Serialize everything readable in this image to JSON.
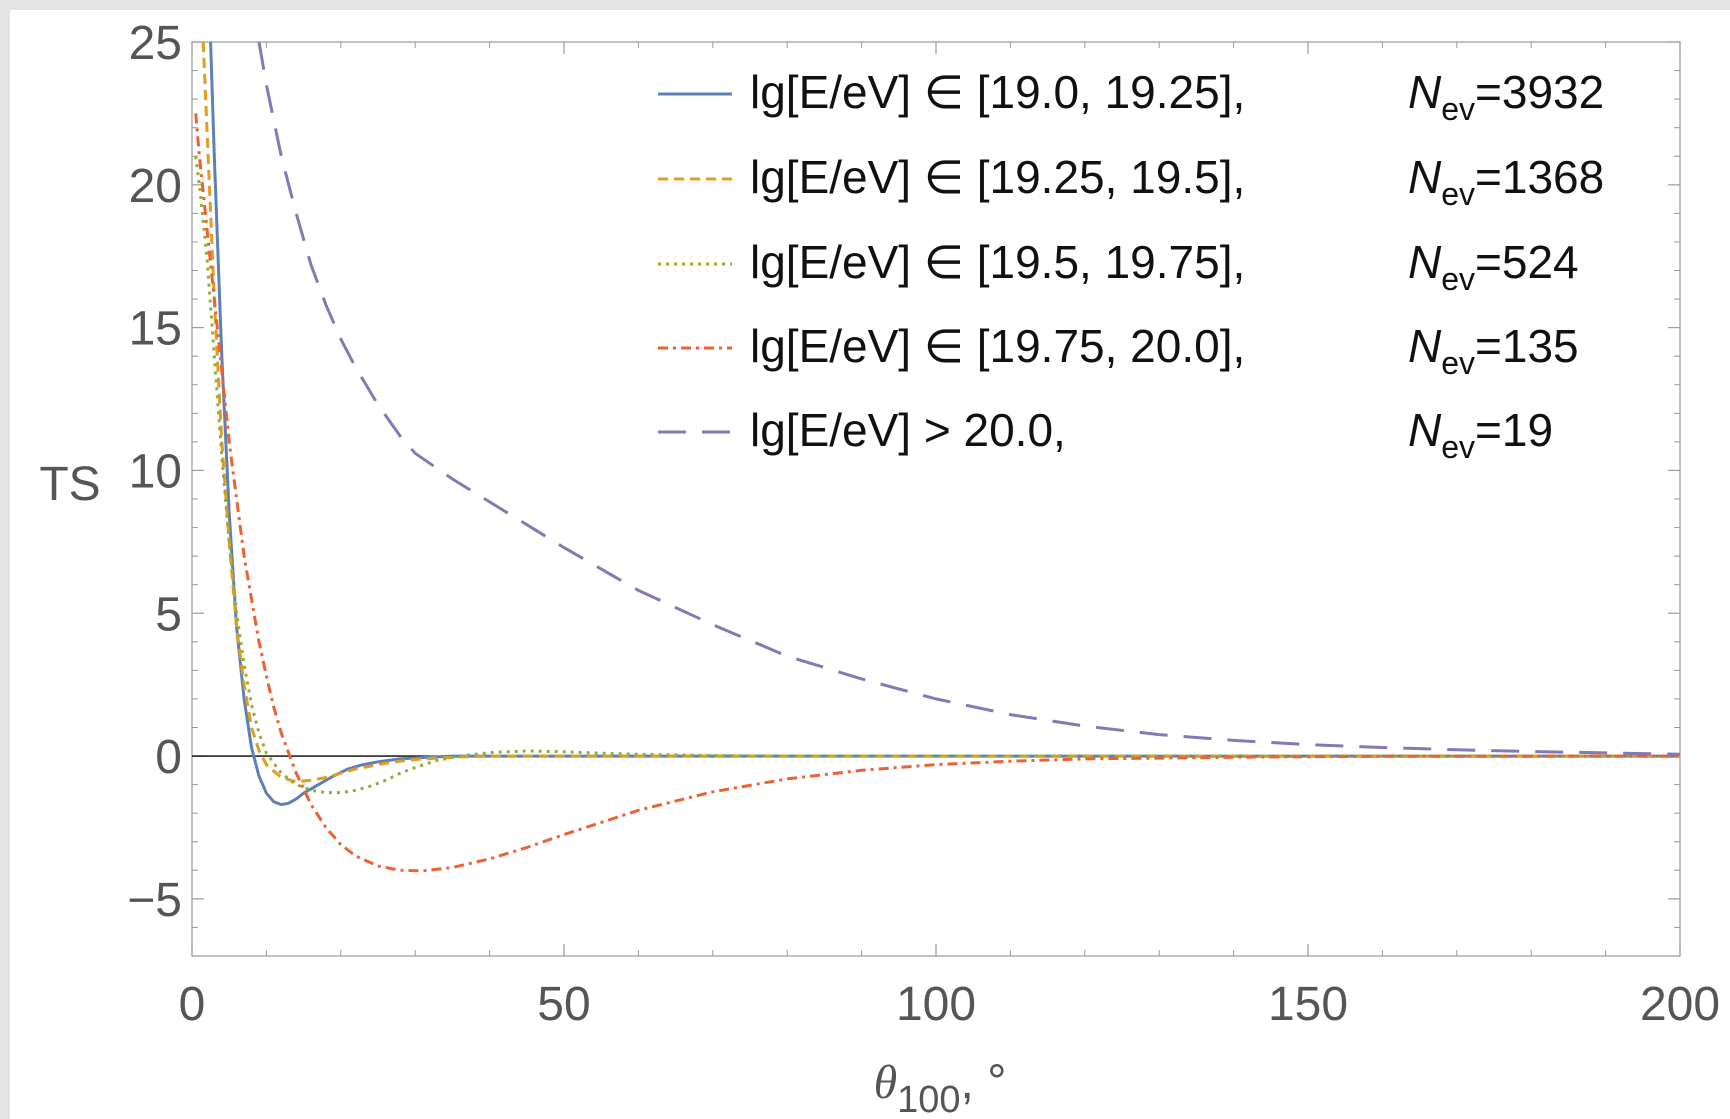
{
  "chart_data": {
    "type": "line",
    "xlabel": "θ100, °",
    "xlabel_main": "θ",
    "xlabel_sub": "100",
    "xlabel_tail": ", °",
    "ylabel": "TS",
    "xlim": [
      0,
      200
    ],
    "ylim": [
      -7,
      25
    ],
    "xticks": [
      0,
      50,
      100,
      150,
      200
    ],
    "yticks": [
      -5,
      0,
      5,
      10,
      15,
      20,
      25
    ],
    "xtick_labels": [
      "0",
      "50",
      "100",
      "150",
      "200"
    ],
    "ytick_labels": [
      "−5",
      "0",
      "5",
      "10",
      "15",
      "20",
      "25"
    ],
    "grid": false,
    "legend_position": "top-right",
    "series": [
      {
        "legend_label": "lg[E/eV] ∈ [19.0, 19.25],",
        "count_label": "=3932",
        "color": "#5E81B5",
        "dash": "solid",
        "x": [
          2.5,
          3,
          4,
          5,
          6,
          7,
          8,
          9,
          10,
          11,
          12,
          13,
          14,
          15,
          17,
          19,
          21,
          23,
          25,
          28,
          31,
          35,
          40,
          50,
          100,
          200
        ],
        "y": [
          25,
          21,
          14,
          8.5,
          4.5,
          2.0,
          0.3,
          -0.7,
          -1.3,
          -1.6,
          -1.7,
          -1.65,
          -1.5,
          -1.3,
          -1.0,
          -0.7,
          -0.45,
          -0.3,
          -0.2,
          -0.1,
          -0.05,
          0,
          0,
          0,
          0,
          0
        ]
      },
      {
        "legend_label": "lg[E/eV] ∈ [19.25, 19.5],",
        "count_label": "=1368",
        "color": "#E19C24",
        "dash": "short-dash",
        "x": [
          1.5,
          2,
          3,
          4,
          5,
          6,
          7,
          8,
          9,
          10,
          12,
          14,
          16,
          18,
          20,
          22,
          24,
          26,
          28,
          30,
          33,
          36,
          40,
          50,
          100,
          200
        ],
        "y": [
          25,
          22,
          16,
          11,
          7.5,
          4.5,
          2.5,
          1.0,
          0.2,
          -0.3,
          -0.75,
          -0.9,
          -0.85,
          -0.75,
          -0.6,
          -0.45,
          -0.35,
          -0.25,
          -0.18,
          -0.12,
          -0.07,
          -0.03,
          0,
          0,
          0,
          0
        ]
      },
      {
        "legend_label": "lg[E/eV] ∈ [19.5, 19.75],",
        "count_label": "=524",
        "color": "#8FB032",
        "dash": "dotted",
        "x": [
          0.5,
          1,
          2,
          3,
          4,
          5,
          6,
          7,
          8,
          9,
          10,
          12,
          14,
          16,
          18,
          20,
          22,
          24,
          26,
          28,
          30,
          33,
          36,
          40,
          45,
          50,
          55,
          60,
          70,
          80,
          100,
          200
        ],
        "y": [
          21,
          20,
          17.5,
          14,
          10.5,
          7.5,
          5.0,
          3.2,
          1.8,
          0.8,
          0.1,
          -0.6,
          -1.0,
          -1.2,
          -1.28,
          -1.28,
          -1.2,
          -1.05,
          -0.85,
          -0.6,
          -0.4,
          -0.15,
          0.0,
          0.12,
          0.18,
          0.15,
          0.1,
          0.06,
          0.02,
          0,
          0,
          0
        ]
      },
      {
        "legend_label": "lg[E/eV] ∈ [19.75, 20.0],",
        "count_label": "=135",
        "color": "#EB6235",
        "dash": "dash-dot",
        "x": [
          0.5,
          1,
          2,
          3,
          4,
          5,
          6,
          7,
          8,
          9,
          10,
          11,
          12,
          14,
          16,
          18,
          20,
          22,
          25,
          28,
          31,
          35,
          40,
          45,
          50,
          60,
          70,
          80,
          90,
          100,
          110,
          120,
          140,
          160,
          200
        ],
        "y": [
          22.5,
          21,
          18.5,
          16,
          13.5,
          11,
          9,
          7,
          5.5,
          4,
          2.8,
          1.7,
          0.8,
          -0.6,
          -1.7,
          -2.5,
          -3.1,
          -3.5,
          -3.85,
          -4.0,
          -4.02,
          -3.9,
          -3.6,
          -3.2,
          -2.75,
          -1.9,
          -1.25,
          -0.8,
          -0.5,
          -0.3,
          -0.18,
          -0.1,
          -0.04,
          -0.01,
          0
        ]
      },
      {
        "legend_label": "lg[E/eV] > 20.0,",
        "count_label": "=19",
        "color": "#8778B3",
        "dash": "long-dash",
        "x": [
          9,
          10,
          12,
          14,
          16,
          18,
          20,
          22,
          25,
          28,
          30,
          35,
          40,
          45,
          50,
          60,
          70,
          80,
          90,
          100,
          110,
          120,
          130,
          140,
          150,
          160,
          170,
          180,
          190,
          200
        ],
        "y": [
          25,
          23.5,
          21,
          19,
          17.2,
          15.8,
          14.6,
          13.6,
          12.3,
          11.2,
          10.6,
          9.7,
          8.9,
          8.1,
          7.3,
          5.8,
          4.6,
          3.5,
          2.7,
          2.0,
          1.45,
          1.05,
          0.75,
          0.55,
          0.4,
          0.3,
          0.22,
          0.16,
          0.11,
          0.06
        ]
      }
    ],
    "count_symbol": "N",
    "count_symbol_sub": "ev"
  }
}
